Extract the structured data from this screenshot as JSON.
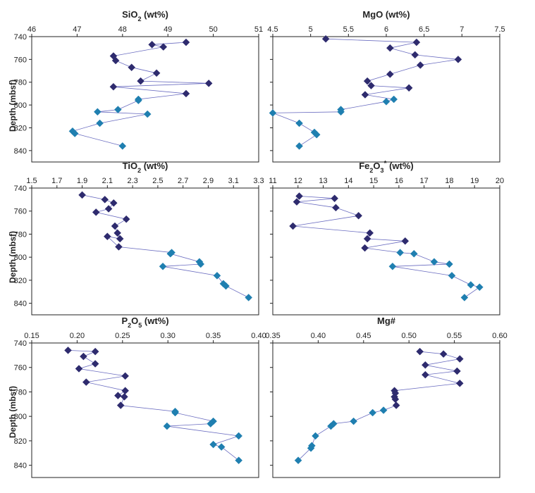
{
  "y_axis_label": "Depth (mbsf)",
  "colors": {
    "dark": "#2e2b6e",
    "light": "#1f7fb0",
    "line": "#6a6cc0",
    "frame": "#222222"
  },
  "chart_data": [
    {
      "id": "sio2",
      "type": "scatter",
      "title": "SiO2 (wt%)",
      "title_parts": [
        "SiO",
        "2",
        " (wt%)"
      ],
      "xlim": [
        46,
        51
      ],
      "ylim": [
        740,
        850
      ],
      "y_inverted": true,
      "xticks": [
        "46",
        "47",
        "48",
        "49",
        "50",
        "51"
      ],
      "yticks": [
        "740",
        "760",
        "780",
        "800",
        "820",
        "840"
      ],
      "y_tick_labels_shown": true,
      "x": [
        49.4,
        48.65,
        48.9,
        47.8,
        47.85,
        48.2,
        48.75,
        48.4,
        49.9,
        47.8,
        49.4,
        48.35,
        48.35,
        47.9,
        47.45,
        48.55,
        47.5,
        46.9,
        46.95,
        48.0
      ],
      "y": [
        745,
        747,
        749,
        757,
        761,
        767,
        772,
        779,
        781,
        784,
        790,
        795,
        796,
        804,
        806,
        808,
        816,
        823,
        825,
        836
      ],
      "point_color": [
        "dark",
        "dark",
        "dark",
        "dark",
        "dark",
        "dark",
        "dark",
        "dark",
        "dark",
        "dark",
        "dark",
        "light",
        "light",
        "light",
        "light",
        "light",
        "light",
        "light",
        "light",
        "light"
      ]
    },
    {
      "id": "mgo",
      "type": "scatter",
      "title": "MgO (wt%)",
      "title_parts": [
        "MgO (wt%)"
      ],
      "xlim": [
        4.5,
        7.5
      ],
      "ylim": [
        740,
        850
      ],
      "y_inverted": true,
      "xticks": [
        "4.5",
        "5",
        "5.5",
        "6",
        "6.5",
        "7",
        "7.5"
      ],
      "yticks": [
        "740",
        "760",
        "780",
        "800",
        "820",
        "840"
      ],
      "y_tick_labels_shown": false,
      "x": [
        5.2,
        6.4,
        6.05,
        6.38,
        6.95,
        6.45,
        6.05,
        5.75,
        5.8,
        6.3,
        5.72,
        6.1,
        6.0,
        5.4,
        5.4,
        4.5,
        4.85,
        5.05,
        5.08,
        4.85
      ],
      "y": [
        742,
        745,
        750,
        756,
        760,
        765,
        773,
        779,
        783,
        785,
        791,
        795,
        797,
        804,
        806,
        807,
        816,
        824,
        826,
        836
      ],
      "point_color": [
        "dark",
        "dark",
        "dark",
        "dark",
        "dark",
        "dark",
        "dark",
        "dark",
        "dark",
        "dark",
        "dark",
        "light",
        "light",
        "light",
        "light",
        "light",
        "light",
        "light",
        "light",
        "light"
      ]
    },
    {
      "id": "tio2",
      "type": "scatter",
      "title": "TiO2 (wt%)",
      "title_parts": [
        "TiO",
        "2",
        " (wt%)"
      ],
      "xlim": [
        1.5,
        3.3
      ],
      "ylim": [
        740,
        850
      ],
      "y_inverted": true,
      "xticks": [
        "1.5",
        "1.7",
        "1.9",
        "2.1",
        "2.3",
        "2.5",
        "2.7",
        "2.9",
        "3.1",
        "3.3"
      ],
      "yticks": [
        "740",
        "760",
        "780",
        "800",
        "820",
        "840"
      ],
      "y_tick_labels_shown": true,
      "x": [
        1.9,
        2.08,
        2.15,
        2.11,
        2.01,
        2.25,
        2.16,
        2.18,
        2.2,
        2.1,
        2.19,
        2.61,
        2.6,
        2.83,
        2.84,
        2.54,
        2.97,
        3.02,
        3.04,
        3.22
      ],
      "y": [
        746,
        750,
        753,
        758,
        761,
        767,
        773,
        779,
        784,
        782,
        791,
        796,
        797,
        804,
        806,
        808,
        816,
        823,
        825,
        835
      ],
      "point_color": [
        "dark",
        "dark",
        "dark",
        "dark",
        "dark",
        "dark",
        "dark",
        "dark",
        "dark",
        "dark",
        "dark",
        "light",
        "light",
        "light",
        "light",
        "light",
        "light",
        "light",
        "light",
        "light"
      ]
    },
    {
      "id": "fe2o3",
      "type": "scatter",
      "title": "Fe2O3* (wt%)",
      "title_parts": [
        "Fe",
        "2",
        "O",
        "3",
        "*",
        " (wt%)"
      ],
      "xlim": [
        11,
        20
      ],
      "ylim": [
        740,
        850
      ],
      "y_inverted": true,
      "xticks": [
        "11",
        "12",
        "13",
        "14",
        "15",
        "16",
        "17",
        "18",
        "19",
        "20"
      ],
      "yticks": [
        "740",
        "760",
        "780",
        "800",
        "820",
        "840"
      ],
      "y_tick_labels_shown": false,
      "x": [
        12.05,
        13.45,
        11.95,
        13.5,
        14.4,
        11.8,
        14.85,
        14.75,
        16.25,
        14.65,
        16.05,
        16.6,
        17.4,
        18.0,
        15.75,
        18.1,
        18.85,
        19.2,
        18.6
      ],
      "y": [
        747,
        749,
        752,
        757,
        764,
        773,
        779,
        784,
        786,
        792,
        796,
        797,
        804,
        806,
        808,
        816,
        824,
        826,
        835
      ],
      "point_color": [
        "dark",
        "dark",
        "dark",
        "dark",
        "dark",
        "dark",
        "dark",
        "dark",
        "dark",
        "dark",
        "light",
        "light",
        "light",
        "light",
        "light",
        "light",
        "light",
        "light",
        "light"
      ]
    },
    {
      "id": "p2o5",
      "type": "scatter",
      "title": "P2O5 (wt%)",
      "title_parts": [
        "P",
        "2",
        "O",
        "5",
        " (wt%)"
      ],
      "xlim": [
        0.15,
        0.4
      ],
      "ylim": [
        740,
        850
      ],
      "y_inverted": true,
      "xticks": [
        "0.15",
        "0.20",
        "0.25",
        "0.30",
        "0.35",
        "0.40"
      ],
      "yticks": [
        "740",
        "760",
        "780",
        "800",
        "820",
        "840"
      ],
      "y_tick_labels_shown": true,
      "x": [
        0.19,
        0.22,
        0.207,
        0.22,
        0.202,
        0.253,
        0.21,
        0.253,
        0.245,
        0.252,
        0.248,
        0.308,
        0.308,
        0.35,
        0.347,
        0.299,
        0.378,
        0.35,
        0.359,
        0.378
      ],
      "y": [
        746,
        747,
        751,
        757,
        761,
        767,
        772,
        779,
        783,
        784,
        791,
        796,
        797,
        804,
        806,
        808,
        816,
        823,
        825,
        836
      ],
      "point_color": [
        "dark",
        "dark",
        "dark",
        "dark",
        "dark",
        "dark",
        "dark",
        "dark",
        "dark",
        "dark",
        "dark",
        "light",
        "light",
        "light",
        "light",
        "light",
        "light",
        "light",
        "light",
        "light"
      ]
    },
    {
      "id": "mgnum",
      "type": "scatter",
      "title": "Mg#",
      "title_parts": [
        "Mg#"
      ],
      "xlim": [
        0.35,
        0.6
      ],
      "ylim": [
        740,
        850
      ],
      "y_inverted": true,
      "xticks": [
        "0.35",
        "0.40",
        "0.45",
        "0.50",
        "0.55",
        "0.60"
      ],
      "yticks": [
        "740",
        "760",
        "780",
        "800",
        "820",
        "840"
      ],
      "y_tick_labels_shown": false,
      "x": [
        0.512,
        0.538,
        0.556,
        0.518,
        0.553,
        0.518,
        0.556,
        0.484,
        0.485,
        0.484,
        0.485,
        0.486,
        0.472,
        0.46,
        0.439,
        0.417,
        0.414,
        0.397,
        0.393,
        0.392,
        0.378
      ],
      "y": [
        747,
        749,
        753,
        758,
        763,
        766,
        773,
        779,
        781,
        784,
        786,
        791,
        795,
        797,
        804,
        806,
        808,
        816,
        824,
        826,
        836
      ],
      "point_color": [
        "dark",
        "dark",
        "dark",
        "dark",
        "dark",
        "dark",
        "dark",
        "dark",
        "dark",
        "dark",
        "dark",
        "dark",
        "light",
        "light",
        "light",
        "light",
        "light",
        "light",
        "light",
        "light",
        "light"
      ]
    }
  ]
}
